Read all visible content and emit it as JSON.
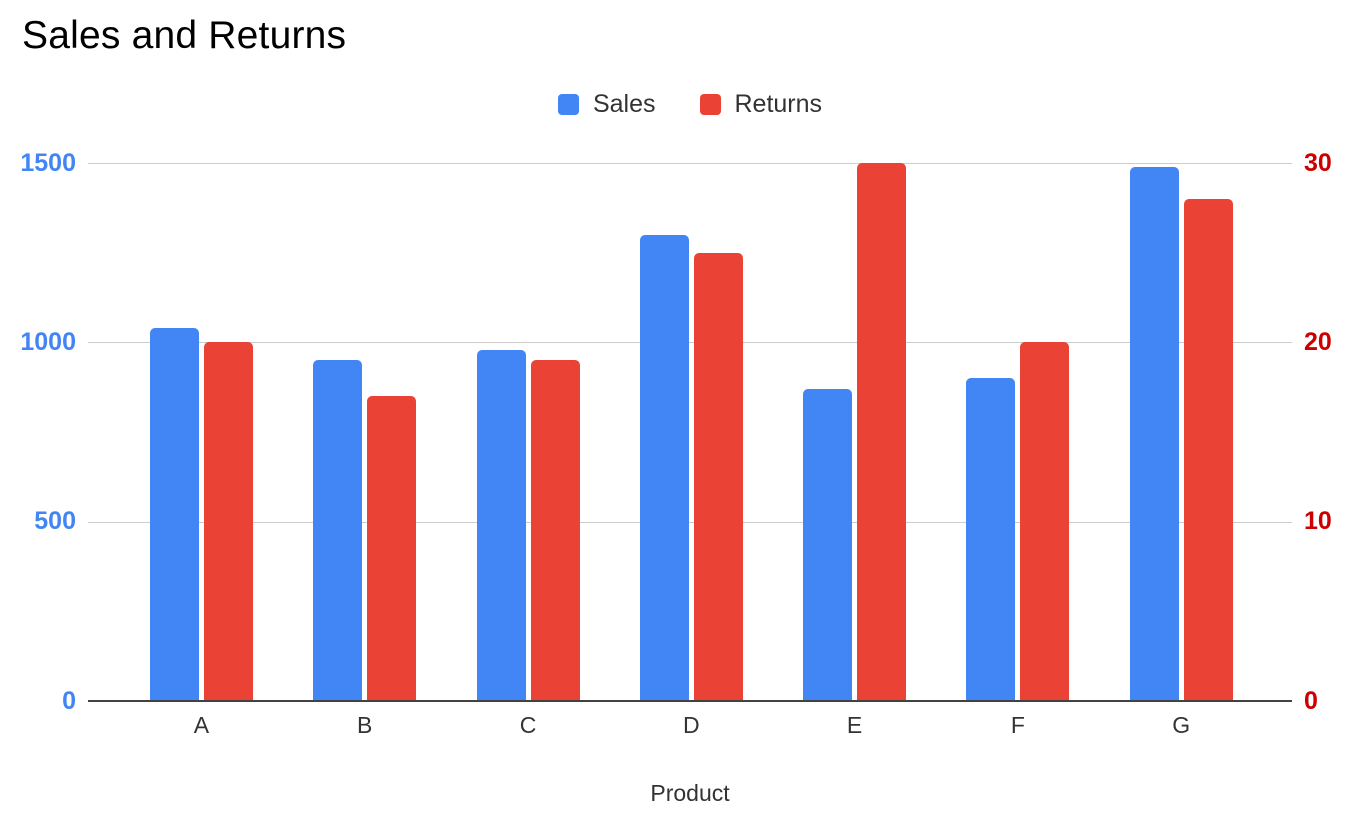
{
  "title": "Sales and Returns",
  "legend": {
    "items": [
      {
        "label": "Sales",
        "color": "#4285F4"
      },
      {
        "label": "Returns",
        "color": "#EA4335"
      }
    ]
  },
  "chart_data": {
    "type": "bar",
    "title": "Sales and Returns",
    "categories": [
      "A",
      "B",
      "C",
      "D",
      "E",
      "F",
      "G"
    ],
    "series": [
      {
        "name": "Sales",
        "axis": "left",
        "color": "#4285F4",
        "values": [
          1040,
          950,
          980,
          1300,
          870,
          900,
          1490
        ]
      },
      {
        "name": "Returns",
        "axis": "right",
        "color": "#EA4335",
        "values": [
          20,
          17,
          19,
          25,
          30,
          20,
          28
        ]
      }
    ],
    "xlabel": "Product",
    "left_axis": {
      "ticks": [
        0,
        500,
        1000,
        1500
      ],
      "range": [
        0,
        1500
      ],
      "label_color": "#4285F4"
    },
    "right_axis": {
      "ticks": [
        0,
        10,
        20,
        30
      ],
      "range": [
        0,
        30
      ],
      "label_color": "#CC0000"
    },
    "grid": true,
    "gridline_color": "#cccccc",
    "baseline_color": "#424242",
    "legend_position": "top"
  }
}
